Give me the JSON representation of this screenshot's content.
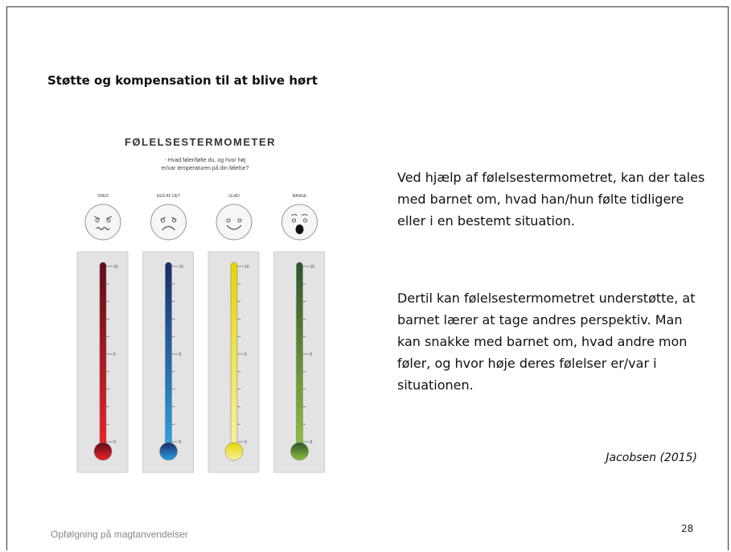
{
  "slide": {
    "title": "Støtte og kompensation til at blive hørt",
    "figure": {
      "heading": "FØLELSESTERMOMETER",
      "question_lines": [
        "- Hvad føler/følte du, og hvor høj",
        "er/var temperaturen på din følelse?"
      ],
      "emotions": [
        "VRED",
        "KED AF DET",
        "GLAD",
        "BANGE"
      ],
      "scale_labels": [
        "10",
        "5",
        "0"
      ]
    },
    "paragraphs": [
      "Ved hjælp af følelsestermometret, kan der tales med barnet om, hvad han/hun følte tidligere eller i en bestemt situation.",
      "Dertil kan følelsestermometret understøtte, at barnet lærer at tage andres perspektiv. Man kan snakke med barnet om, hvad andre mon føler, og hvor høje deres følelser er/var i situationen."
    ],
    "citation": "Jacobsen (2015)",
    "footer": "Opfølgning på magtanvendelser",
    "page_number": "28"
  }
}
